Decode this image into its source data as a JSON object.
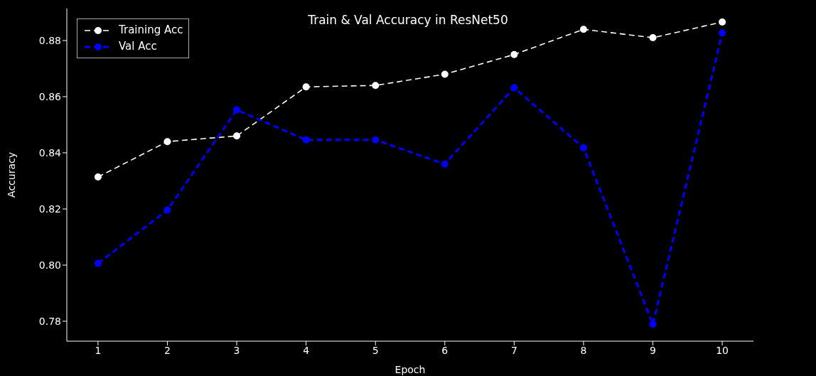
{
  "chart_data": {
    "type": "line",
    "title": "Train & Val Accuracy in ResNet50",
    "xlabel": "Epoch",
    "ylabel": "Accuracy",
    "x": [
      1,
      2,
      3,
      4,
      5,
      6,
      7,
      8,
      9,
      10
    ],
    "series": [
      {
        "name": "Training Acc",
        "color": "#ffffff",
        "line_style": "dashed",
        "values": [
          0.8314,
          0.844,
          0.846,
          0.8635,
          0.864,
          0.868,
          0.875,
          0.884,
          0.881,
          0.8866
        ]
      },
      {
        "name": "Val Acc",
        "color": "#0000ff",
        "line_style": "dashed",
        "values": [
          0.8006,
          0.8196,
          0.8553,
          0.8446,
          0.8446,
          0.836,
          0.8632,
          0.8418,
          0.7789,
          0.8827
        ]
      }
    ],
    "xlim": [
      0.55,
      10.45
    ],
    "xticks": [
      1,
      2,
      3,
      4,
      5,
      6,
      7,
      8,
      9,
      10
    ],
    "ylim": [
      0.7729,
      0.8914
    ],
    "yticks": [
      0.78,
      {
        "value": 0.8,
        "label": "0.80"
      },
      0.82,
      0.84,
      0.86,
      0.88
    ],
    "legend": "top left",
    "marker": "circle"
  }
}
